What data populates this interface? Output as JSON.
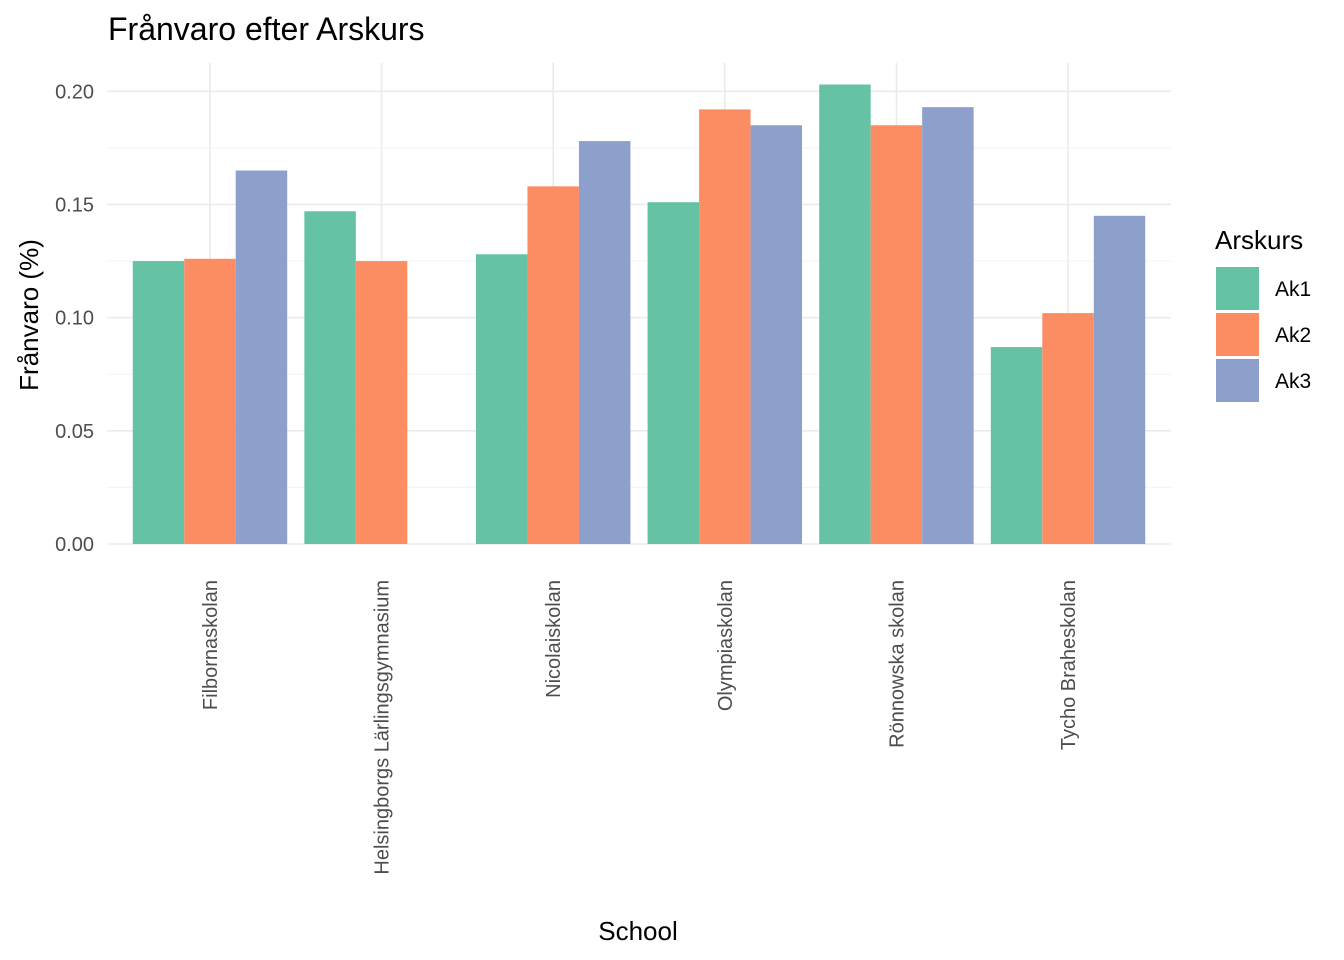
{
  "chart_data": {
    "type": "bar",
    "title": "Frånvaro efter Arskurs",
    "xlabel": "School",
    "ylabel": "Frånvaro (%)",
    "categories": [
      "Filbornaskolan",
      "Helsingborgs Lärlingsgymnasium",
      "Nicolaiskolan",
      "Olympiaskolan",
      "Rönnowska skolan",
      "Tycho Braheskolan"
    ],
    "series": [
      {
        "name": "Ak1",
        "color": "#66c2a5",
        "values": [
          0.125,
          0.147,
          0.128,
          0.151,
          0.203,
          0.087
        ]
      },
      {
        "name": "Ak2",
        "color": "#fc8d62",
        "values": [
          0.126,
          0.125,
          0.158,
          0.192,
          0.185,
          0.102
        ]
      },
      {
        "name": "Ak3",
        "color": "#8da0cb",
        "values": [
          0.165,
          null,
          0.178,
          0.185,
          0.193,
          0.145
        ]
      }
    ],
    "ylim": [
      0,
      0.2125
    ],
    "yticks": [
      "0.00",
      "0.05",
      "0.10",
      "0.15",
      "0.20"
    ],
    "ytick_values": [
      0,
      0.05,
      0.1,
      0.15,
      0.2
    ],
    "grid": true,
    "legend": {
      "title": "Arskurs",
      "position": "right"
    }
  }
}
